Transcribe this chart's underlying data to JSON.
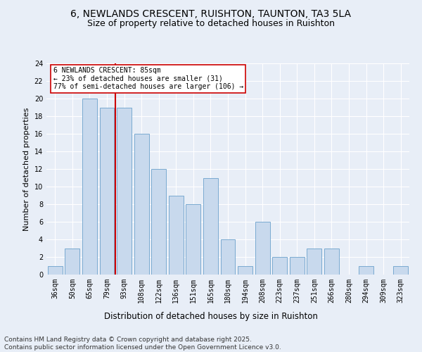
{
  "title": "6, NEWLANDS CRESCENT, RUISHTON, TAUNTON, TA3 5LA",
  "subtitle": "Size of property relative to detached houses in Ruishton",
  "xlabel": "Distribution of detached houses by size in Ruishton",
  "ylabel": "Number of detached properties",
  "categories": [
    "36sqm",
    "50sqm",
    "65sqm",
    "79sqm",
    "93sqm",
    "108sqm",
    "122sqm",
    "136sqm",
    "151sqm",
    "165sqm",
    "180sqm",
    "194sqm",
    "208sqm",
    "223sqm",
    "237sqm",
    "251sqm",
    "266sqm",
    "280sqm",
    "294sqm",
    "309sqm",
    "323sqm"
  ],
  "values": [
    1,
    3,
    20,
    19,
    19,
    16,
    12,
    9,
    8,
    11,
    4,
    1,
    6,
    2,
    2,
    3,
    3,
    0,
    1,
    0,
    1
  ],
  "bar_color": "#c8d9ed",
  "bar_edge_color": "#7aaad0",
  "background_color": "#e8eef7",
  "grid_color": "#ffffff",
  "vline_index": 4,
  "vline_color": "#cc0000",
  "annotation_text": "6 NEWLANDS CRESCENT: 85sqm\n← 23% of detached houses are smaller (31)\n77% of semi-detached houses are larger (106) →",
  "annotation_box_color": "#ffffff",
  "annotation_box_edge": "#cc0000",
  "ylim": [
    0,
    24
  ],
  "yticks": [
    0,
    2,
    4,
    6,
    8,
    10,
    12,
    14,
    16,
    18,
    20,
    22,
    24
  ],
  "footer": "Contains HM Land Registry data © Crown copyright and database right 2025.\nContains public sector information licensed under the Open Government Licence v3.0.",
  "title_fontsize": 10,
  "subtitle_fontsize": 9,
  "xlabel_fontsize": 8.5,
  "ylabel_fontsize": 8,
  "tick_fontsize": 7,
  "annotation_fontsize": 7,
  "footer_fontsize": 6.5
}
